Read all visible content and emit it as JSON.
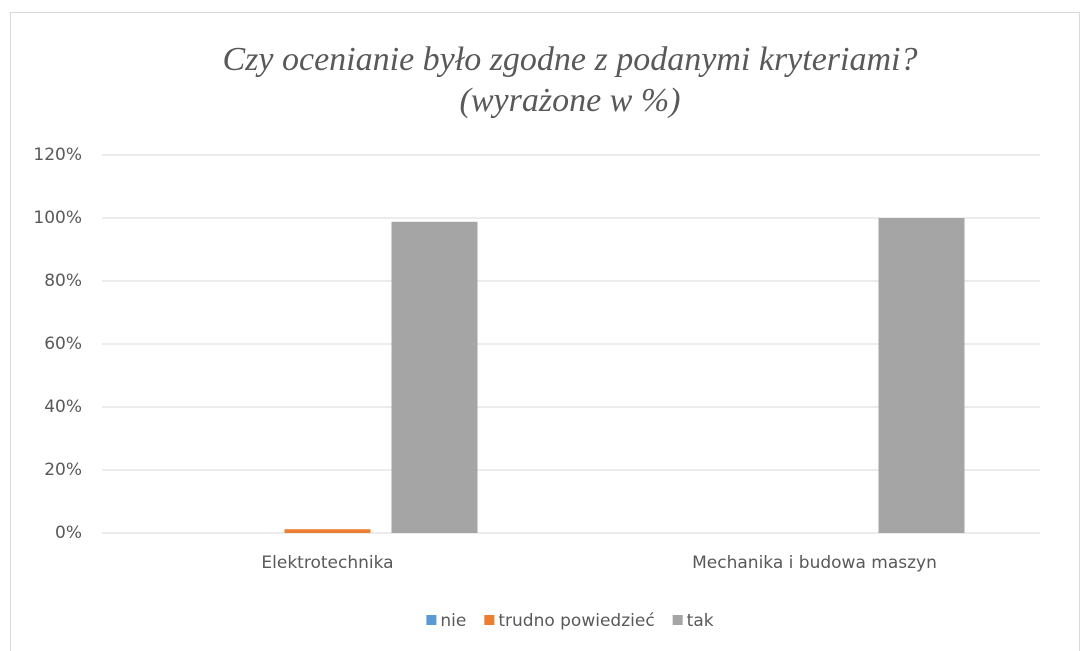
{
  "chart_data": {
    "type": "bar",
    "title": [
      "Czy ocenianie było zgodne z podanymi kryteriami?",
      "(wyrażone w %)"
    ],
    "categories": [
      "Elektrotechnika",
      "Mechanika i budowa maszyn"
    ],
    "series": [
      {
        "name": "nie",
        "color": "#5b9bd5",
        "values": [
          0,
          0
        ]
      },
      {
        "name": "trudno powiedzieć",
        "color": "#ed7d31",
        "values": [
          1.2,
          0
        ]
      },
      {
        "name": "tak",
        "color": "#a5a5a5",
        "values": [
          98.8,
          100
        ]
      }
    ],
    "ylim": [
      0,
      120
    ],
    "yticks": [
      {
        "value": 0,
        "label": "0%"
      },
      {
        "value": 20,
        "label": "20%"
      },
      {
        "value": 40,
        "label": "40%"
      },
      {
        "value": 60,
        "label": "60%"
      },
      {
        "value": 80,
        "label": "80%"
      },
      {
        "value": 100,
        "label": "100%"
      },
      {
        "value": 120,
        "label": "120%"
      }
    ],
    "grid": true,
    "legend": "bottom"
  }
}
